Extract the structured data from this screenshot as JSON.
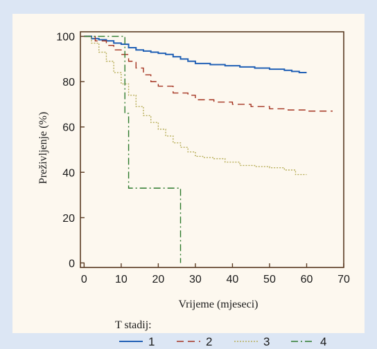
{
  "chart_data": {
    "type": "line",
    "step": true,
    "xlabel": "Vrijeme (mjeseci)",
    "ylabel": "Preživljenje (%)",
    "xlim": [
      -1,
      70
    ],
    "ylim": [
      -2,
      102
    ],
    "xticks": [
      0,
      10,
      20,
      30,
      40,
      50,
      60,
      70
    ],
    "yticks": [
      0,
      20,
      40,
      60,
      80,
      100
    ],
    "grid": false,
    "legend": {
      "title": "T stadij:",
      "position": "bottom"
    },
    "series": [
      {
        "name": "1",
        "color": "#1f5fb5",
        "dash": "",
        "x": [
          0,
          2,
          4,
          6,
          8,
          10,
          12,
          14,
          16,
          18,
          20,
          22,
          24,
          26,
          28,
          30,
          34,
          38,
          42,
          46,
          50,
          54,
          56,
          58,
          60
        ],
        "y": [
          100,
          99,
          98.5,
          98,
          97,
          96.5,
          95,
          94,
          93.5,
          93,
          92.5,
          92,
          91,
          90,
          89,
          88,
          87.5,
          87,
          86.5,
          86,
          85.5,
          85,
          84.5,
          84,
          84
        ]
      },
      {
        "name": "2",
        "color": "#a3311e",
        "dash": "10,6",
        "x": [
          0,
          3,
          6,
          8,
          10,
          12,
          14,
          16,
          18,
          20,
          24,
          28,
          30,
          35,
          40,
          45,
          50,
          55,
          60,
          67
        ],
        "y": [
          100,
          98,
          96,
          94,
          92,
          89,
          86,
          83,
          80,
          78,
          75,
          74,
          72,
          71,
          70,
          69,
          68,
          67.5,
          67,
          67
        ]
      },
      {
        "name": "3",
        "color": "#b7ad58",
        "dash": "2,2",
        "x": [
          0,
          2,
          4,
          6,
          8,
          10,
          12,
          14,
          16,
          18,
          20,
          22,
          24,
          26,
          28,
          30,
          32,
          35,
          38,
          42,
          46,
          50,
          54,
          57,
          60
        ],
        "y": [
          100,
          97,
          93,
          89,
          84,
          79,
          74,
          69,
          65,
          62,
          59,
          56,
          53,
          51,
          49,
          47,
          46.5,
          46,
          44.5,
          43,
          42.5,
          42,
          41,
          39,
          39
        ]
      },
      {
        "name": "4",
        "color": "#2c7a2c",
        "dash": "10,4,2,4",
        "x": [
          0,
          11,
          11,
          12,
          12,
          26,
          26
        ],
        "y": [
          100,
          100,
          66,
          66,
          33,
          33,
          0
        ]
      }
    ]
  }
}
